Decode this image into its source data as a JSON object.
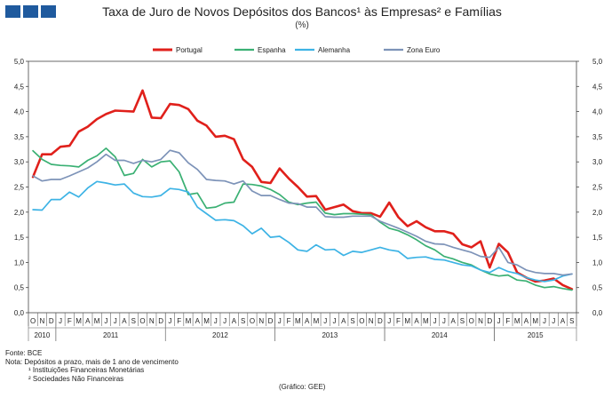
{
  "chart_data": {
    "type": "line",
    "title": "Taxa de Juro de Novos Depósitos dos Bancos¹ às Empresas² e Famílias",
    "subtitle": "(%)",
    "ylim": [
      0,
      5
    ],
    "yticks": [
      "0,0",
      "0,5",
      "1,0",
      "1,5",
      "2,0",
      "2,5",
      "3,0",
      "3,5",
      "4,0",
      "4,5",
      "5,0"
    ],
    "month_labels": [
      "O",
      "N",
      "D",
      "J",
      "F",
      "M",
      "A",
      "M",
      "J",
      "J",
      "A",
      "S",
      "O",
      "N",
      "D",
      "J",
      "F",
      "M",
      "A",
      "M",
      "J",
      "J",
      "A",
      "S",
      "O",
      "N",
      "D",
      "J",
      "F",
      "M",
      "A",
      "M",
      "J",
      "J",
      "A",
      "S",
      "O",
      "N",
      "D",
      "J",
      "F",
      "M",
      "A",
      "M",
      "J",
      "J",
      "A",
      "S",
      "O",
      "N",
      "D",
      "J",
      "F",
      "M",
      "A",
      "M",
      "J",
      "J",
      "A",
      "S"
    ],
    "years": [
      {
        "label": "2010",
        "start": 0,
        "end": 2
      },
      {
        "label": "2011",
        "start": 3,
        "end": 14
      },
      {
        "label": "2012",
        "start": 15,
        "end": 26
      },
      {
        "label": "2013",
        "start": 27,
        "end": 38
      },
      {
        "label": "2014",
        "start": 39,
        "end": 50
      },
      {
        "label": "2015",
        "start": 51,
        "end": 59
      }
    ],
    "series": [
      {
        "name": "Portugal",
        "color": "#e0201b",
        "width": 2.6,
        "values": [
          2.7,
          3.15,
          3.15,
          3.3,
          3.32,
          3.6,
          3.7,
          3.85,
          3.95,
          4.02,
          4.01,
          4.0,
          4.42,
          3.88,
          3.87,
          4.15,
          4.13,
          4.05,
          3.82,
          3.72,
          3.5,
          3.52,
          3.45,
          3.05,
          2.9,
          2.6,
          2.58,
          2.87,
          2.67,
          2.5,
          2.31,
          2.32,
          2.05,
          2.1,
          2.15,
          2.02,
          1.98,
          1.98,
          1.91,
          2.19,
          1.9,
          1.72,
          1.82,
          1.7,
          1.62,
          1.62,
          1.57,
          1.36,
          1.3,
          1.42,
          0.9,
          1.37,
          1.2,
          0.8,
          0.7,
          0.62,
          0.64,
          0.68,
          0.55,
          0.47
        ]
      },
      {
        "name": "Espanha",
        "color": "#3ab073",
        "width": 1.7,
        "values": [
          3.22,
          3.05,
          2.95,
          2.93,
          2.92,
          2.9,
          3.03,
          3.12,
          3.27,
          3.1,
          2.73,
          2.77,
          3.05,
          2.9,
          3.0,
          3.02,
          2.8,
          2.35,
          2.38,
          2.08,
          2.1,
          2.18,
          2.2,
          2.56,
          2.55,
          2.52,
          2.45,
          2.35,
          2.2,
          2.15,
          2.18,
          2.2,
          1.98,
          1.95,
          1.97,
          1.97,
          1.96,
          1.95,
          1.8,
          1.68,
          1.63,
          1.55,
          1.45,
          1.33,
          1.25,
          1.12,
          1.07,
          1.0,
          0.95,
          0.85,
          0.77,
          0.73,
          0.75,
          0.65,
          0.63,
          0.55,
          0.5,
          0.52,
          0.48,
          0.45
        ]
      },
      {
        "name": "Alemanha",
        "color": "#3db3e5",
        "width": 1.7,
        "values": [
          2.05,
          2.04,
          2.25,
          2.25,
          2.4,
          2.3,
          2.48,
          2.61,
          2.58,
          2.54,
          2.56,
          2.38,
          2.31,
          2.3,
          2.33,
          2.47,
          2.45,
          2.4,
          2.1,
          1.97,
          1.84,
          1.85,
          1.83,
          1.73,
          1.57,
          1.68,
          1.5,
          1.52,
          1.4,
          1.25,
          1.22,
          1.35,
          1.25,
          1.26,
          1.14,
          1.22,
          1.2,
          1.25,
          1.3,
          1.25,
          1.22,
          1.08,
          1.1,
          1.11,
          1.06,
          1.05,
          1.0,
          0.95,
          0.93,
          0.85,
          0.8,
          0.9,
          0.82,
          0.78,
          0.7,
          0.65,
          0.62,
          0.65,
          0.73,
          0.77
        ]
      },
      {
        "name": "Zona Euro",
        "color": "#7d93b8",
        "width": 1.7,
        "values": [
          2.72,
          2.62,
          2.65,
          2.65,
          2.72,
          2.8,
          2.88,
          3.0,
          3.15,
          3.03,
          3.03,
          2.97,
          3.03,
          3.0,
          3.05,
          3.23,
          3.18,
          2.98,
          2.85,
          2.65,
          2.63,
          2.62,
          2.56,
          2.62,
          2.42,
          2.33,
          2.33,
          2.25,
          2.18,
          2.17,
          2.1,
          2.1,
          1.91,
          1.9,
          1.9,
          1.92,
          1.92,
          1.92,
          1.82,
          1.75,
          1.68,
          1.6,
          1.52,
          1.42,
          1.37,
          1.36,
          1.3,
          1.25,
          1.2,
          1.12,
          1.1,
          1.3,
          1.0,
          0.95,
          0.85,
          0.8,
          0.78,
          0.78,
          0.75,
          0.77
        ]
      }
    ]
  },
  "notes": {
    "fonte": "Fonte: BCE",
    "nota": "Nota: Depósitos a prazo, mais de 1 ano de vencimento",
    "nota1": "¹ Instituições Financeiras Monetárias",
    "nota2": "² Sociedades Não Financeiras"
  },
  "source_label": "(Gráfico: GEE)"
}
